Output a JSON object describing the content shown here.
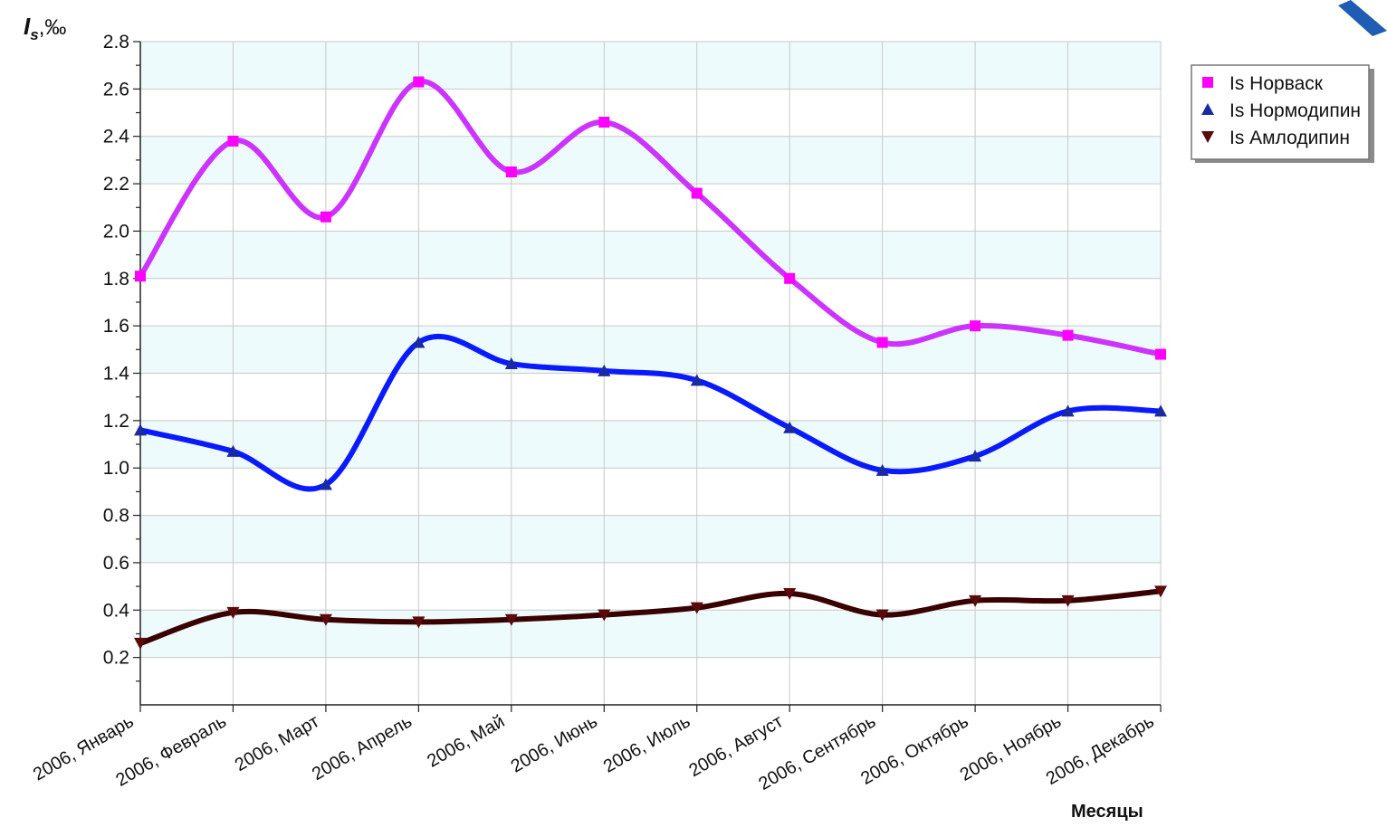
{
  "chart_data": {
    "type": "line",
    "ylabel": {
      "main": "I",
      "sub": "s",
      "unit": ",‰"
    },
    "xlabel": "Месяцы",
    "ylim": [
      0,
      2.8
    ],
    "yticks": [
      "0.2",
      "0.4",
      "0.6",
      "0.8",
      "1.0",
      "1.2",
      "1.4",
      "1.6",
      "1.8",
      "2.0",
      "2.2",
      "2.4",
      "2.6",
      "2.8"
    ],
    "grid": true,
    "legend_position": "top-right",
    "categories": [
      "2006, Январь",
      "2006, Февраль",
      "2006, Март",
      "2006, Апрель",
      "2006, Май",
      "2006, Июнь",
      "2006, Июль",
      "2006, Август",
      "2006, Сентябрь",
      "2006, Октябрь",
      "2006, Ноябрь",
      "2006, Декабрь"
    ],
    "series": [
      {
        "name": "Is Норваск",
        "color": "#cc33ff",
        "marker": "square",
        "marker_color": "#ff00ff",
        "values": [
          1.81,
          2.38,
          2.06,
          2.63,
          2.25,
          2.46,
          2.16,
          1.8,
          1.53,
          1.6,
          1.56,
          1.48
        ]
      },
      {
        "name": "Is Нормодипин",
        "color": "#0a1aff",
        "marker": "triangle-up",
        "marker_color": "#1a2aa0",
        "values": [
          1.16,
          1.07,
          0.93,
          1.53,
          1.44,
          1.41,
          1.37,
          1.17,
          0.99,
          1.05,
          1.24,
          1.24
        ]
      },
      {
        "name": "Is Амлодипин",
        "color": "#3a0000",
        "marker": "triangle-down",
        "marker_color": "#5a0a0a",
        "values": [
          0.26,
          0.39,
          0.36,
          0.35,
          0.36,
          0.38,
          0.41,
          0.47,
          0.38,
          0.44,
          0.44,
          0.48
        ]
      }
    ]
  },
  "colors": {
    "plot_band": "#eefbfc",
    "grid": "#c8c8c8",
    "corner_accent": "#1f5cb3"
  }
}
